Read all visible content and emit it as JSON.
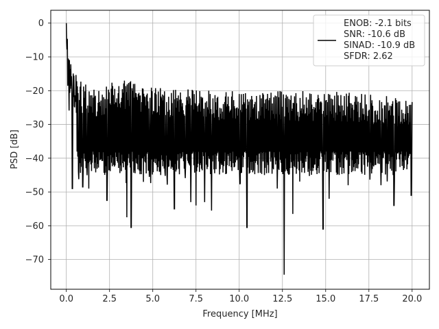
{
  "chart_data": {
    "type": "line",
    "title": "",
    "xlabel": "Frequency [MHz]",
    "ylabel": "PSD [dB]",
    "xlim": [
      -0.9,
      21.0
    ],
    "ylim": [
      -78.8,
      3.8
    ],
    "xticks": [
      0.0,
      2.5,
      5.0,
      7.5,
      10.0,
      12.5,
      15.0,
      17.5,
      20.0
    ],
    "xtick_labels": [
      "0.0",
      "2.5",
      "5.0",
      "7.5",
      "10.0",
      "12.5",
      "15.0",
      "17.5",
      "20.0"
    ],
    "yticks": [
      0,
      -10,
      -20,
      -30,
      -40,
      -50,
      -60,
      -70
    ],
    "ytick_labels": [
      "0",
      "−10",
      "−20",
      "−30",
      "−40",
      "−50",
      "−60",
      "−70"
    ],
    "grid": true,
    "legend_position": "top-right",
    "line_color": "#000000",
    "series": [
      {
        "legend_lines": [
          "ENOB: -2.1 bits",
          "SNR: -10.6 dB",
          "SINAD: -10.9 dB",
          "SFDR: 2.62"
        ],
        "x_range": [
          0.0,
          20.0
        ],
        "x_step": 0.02,
        "peak": {
          "x": 0.0,
          "y": 0.0
        },
        "initial_decay": [
          [
            0.0,
            0.0
          ],
          [
            0.02,
            -5
          ],
          [
            0.05,
            -10
          ],
          [
            0.1,
            -13
          ],
          [
            0.2,
            -16
          ],
          [
            0.35,
            -19
          ],
          [
            0.6,
            -21
          ]
        ],
        "upper_envelope": [
          [
            0.6,
            -16
          ],
          [
            1.0,
            -18
          ],
          [
            2.0,
            -19
          ],
          [
            3.0,
            -16
          ],
          [
            5.0,
            -19
          ],
          [
            10.0,
            -20
          ],
          [
            15.0,
            -20
          ],
          [
            20.0,
            -22
          ]
        ],
        "baseline": -32,
        "notable_dips": [
          {
            "x": 0.35,
            "y": -49
          },
          {
            "x": 0.95,
            "y": -48.5
          },
          {
            "x": 1.3,
            "y": -49
          },
          {
            "x": 2.35,
            "y": -52.5
          },
          {
            "x": 3.5,
            "y": -57.5
          },
          {
            "x": 3.75,
            "y": -60.5
          },
          {
            "x": 6.25,
            "y": -55
          },
          {
            "x": 7.2,
            "y": -53
          },
          {
            "x": 7.5,
            "y": -54
          },
          {
            "x": 8.0,
            "y": -53
          },
          {
            "x": 8.4,
            "y": -55.5
          },
          {
            "x": 10.45,
            "y": -60.5
          },
          {
            "x": 12.2,
            "y": -49
          },
          {
            "x": 12.6,
            "y": -74.5
          },
          {
            "x": 13.1,
            "y": -56.5
          },
          {
            "x": 14.85,
            "y": -61
          },
          {
            "x": 15.2,
            "y": -52
          },
          {
            "x": 16.3,
            "y": -48
          },
          {
            "x": 18.2,
            "y": -48
          },
          {
            "x": 18.95,
            "y": -54
          },
          {
            "x": 19.95,
            "y": -51
          }
        ]
      }
    ]
  }
}
